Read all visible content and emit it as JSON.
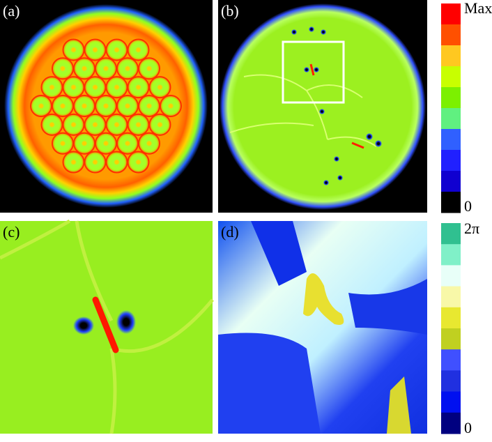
{
  "panels": [
    {
      "label": "(a)"
    },
    {
      "label": "(b)"
    },
    {
      "label": "(c)"
    },
    {
      "label": "(d)"
    }
  ],
  "colorbars": [
    {
      "max_label": "Max",
      "min_label": "0"
    },
    {
      "max_label": "2π",
      "min_label": "0"
    }
  ]
}
